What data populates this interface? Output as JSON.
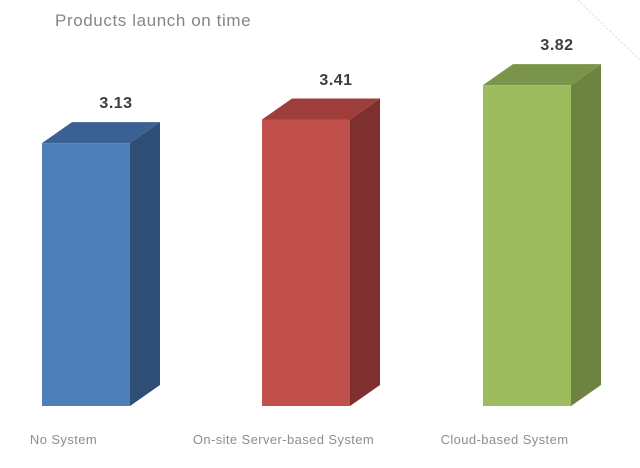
{
  "chart_data": {
    "type": "bar",
    "style": "3d-column",
    "title": "Products launch on time",
    "categories": [
      "No System",
      "On-site Server-based System",
      "Cloud-based System"
    ],
    "values": [
      3.13,
      3.41,
      3.82
    ],
    "value_labels": [
      "3.13",
      "3.41",
      "3.82"
    ],
    "bar_colors": [
      {
        "name": "blue",
        "front": "#4E7EB9",
        "top": "#3A6191",
        "side": "#2F4E76"
      },
      {
        "name": "red",
        "front": "#C1504C",
        "top": "#9E3E3B",
        "side": "#7E302E"
      },
      {
        "name": "green",
        "front": "#9CBC5E",
        "top": "#7A9449",
        "side": "#6C8440"
      }
    ],
    "xlabel": "",
    "ylabel": "",
    "baseline": 0,
    "ylim": [
      0,
      4
    ],
    "grid": false,
    "legend": "none",
    "title_color": "#85858a",
    "value_label_color": "#3d3d3d",
    "category_label_color": "#8e8e8e",
    "background_color": "#ffffff",
    "decoration_line_color": "#d9d9d9"
  }
}
